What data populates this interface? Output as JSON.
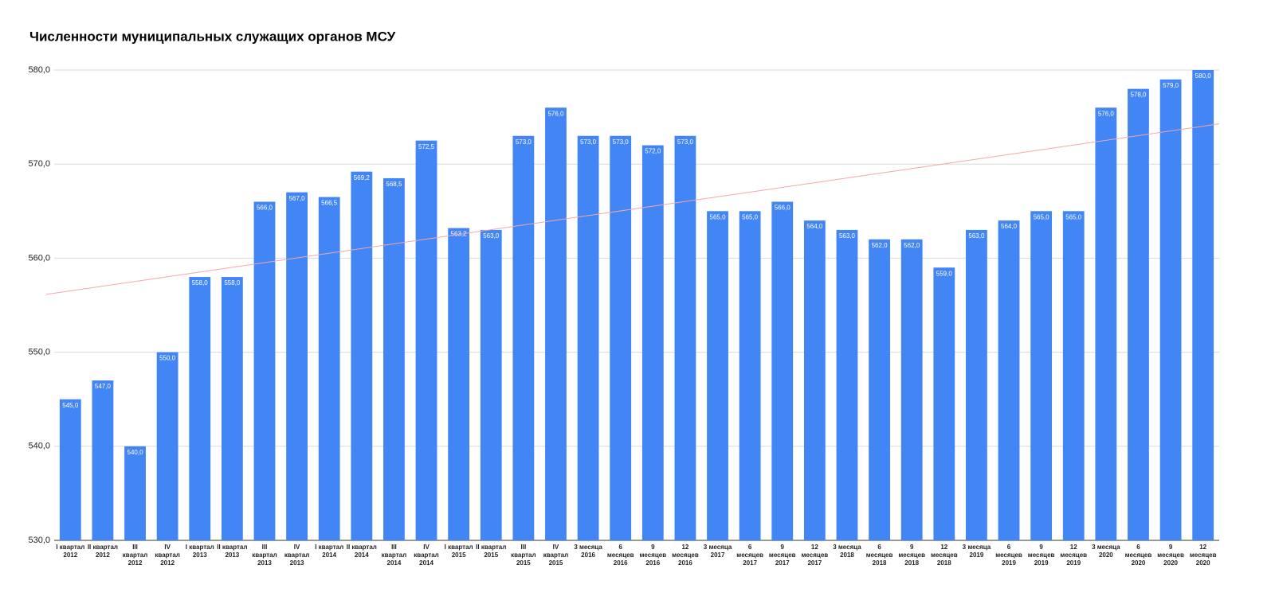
{
  "chart_data": {
    "type": "bar",
    "title": "Численности муниципальных служащих органов МСУ",
    "categories": [
      "I квартал 2012",
      "II квартал 2012",
      "III квартал 2012",
      "IV квартал 2012",
      "I квартал 2013",
      "II квартал 2013",
      "III квартал 2013",
      "IV квартал 2013",
      "I квартал 2014",
      "II квартал 2014",
      "III квартал 2014",
      "IV квартал 2014",
      "I квартал 2015",
      "II квартал 2015",
      "III квартал 2015",
      "IV квартал 2015",
      "3 месяца 2016",
      "6 месяцев 2016",
      "9 месяцев 2016",
      "12 месяцев 2016",
      "3 месяца 2017",
      "6 месяцев 2017",
      "9 месяцев 2017",
      "12 месяцев 2017",
      "3 месяца 2018",
      "6 месяцев 2018",
      "9 месяцев 2018",
      "12 месяцев 2018",
      "3 месяца 2019",
      "6 месяцев 2019",
      "9 месяцев 2019",
      "12 месяцев 2019",
      "3 месяца 2020",
      "6 месяцев 2020",
      "9 месяцев 2020",
      "12 месяцев 2020"
    ],
    "values": [
      545,
      547,
      540,
      550,
      558,
      558,
      566,
      567,
      566.5,
      569.2,
      568.5,
      572.5,
      563.2,
      563,
      573,
      576,
      573,
      573,
      572,
      573,
      565,
      565,
      566,
      564,
      563,
      562,
      562,
      559,
      563,
      564,
      565,
      565,
      576,
      578,
      579,
      580
    ],
    "value_labels": [
      "545,0",
      "547,0",
      "540,0",
      "550,0",
      "558,0",
      "558,0",
      "566,0",
      "567,0",
      "566,5",
      "569,2",
      "568,5",
      "572,5",
      "563,2",
      "563,0",
      "573,0",
      "576,0",
      "573,0",
      "573,0",
      "572,0",
      "573,0",
      "565,0",
      "565,0",
      "566,0",
      "564,0",
      "563,0",
      "562,0",
      "562,0",
      "559,0",
      "563,0",
      "564,0",
      "565,0",
      "565,0",
      "576,0",
      "578,0",
      "579,0",
      "580,0"
    ],
    "color": "#4285f4",
    "ylim": [
      530,
      580
    ],
    "yticks": [
      {
        "value": 530,
        "label": "530,0"
      },
      {
        "value": 540,
        "label": "540,0"
      },
      {
        "value": 550,
        "label": "550,0"
      },
      {
        "value": 560,
        "label": "560,0"
      },
      {
        "value": 570,
        "label": "570,0"
      },
      {
        "value": 580,
        "label": "580,0"
      }
    ],
    "grid": true,
    "trendline": true,
    "trendline_color": "#f4a7a7"
  }
}
